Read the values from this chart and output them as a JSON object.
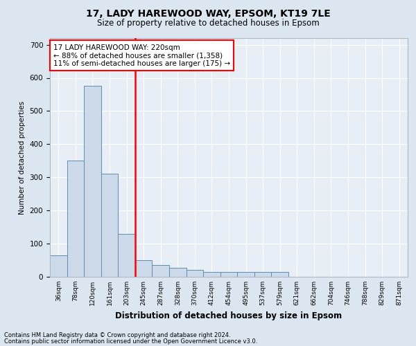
{
  "title1": "17, LADY HAREWOOD WAY, EPSOM, KT19 7LE",
  "title2": "Size of property relative to detached houses in Epsom",
  "xlabel": "Distribution of detached houses by size in Epsom",
  "ylabel": "Number of detached properties",
  "bin_labels": [
    "36sqm",
    "78sqm",
    "120sqm",
    "161sqm",
    "203sqm",
    "245sqm",
    "287sqm",
    "328sqm",
    "370sqm",
    "412sqm",
    "454sqm",
    "495sqm",
    "537sqm",
    "579sqm",
    "621sqm",
    "662sqm",
    "704sqm",
    "746sqm",
    "788sqm",
    "829sqm",
    "871sqm"
  ],
  "bin_values": [
    65,
    350,
    575,
    310,
    130,
    50,
    35,
    28,
    20,
    15,
    15,
    15,
    15,
    15,
    0,
    0,
    0,
    0,
    0,
    0,
    0
  ],
  "bar_color": "#ccd9e8",
  "bar_edge_color": "#5b8db8",
  "red_line_x": 4.5,
  "ylim": [
    0,
    720
  ],
  "yticks": [
    0,
    100,
    200,
    300,
    400,
    500,
    600,
    700
  ],
  "annotation_line1": "17 LADY HAREWOOD WAY: 220sqm",
  "annotation_line2": "← 88% of detached houses are smaller (1,358)",
  "annotation_line3": "11% of semi-detached houses are larger (175) →",
  "footer1": "Contains HM Land Registry data © Crown copyright and database right 2024.",
  "footer2": "Contains public sector information licensed under the Open Government Licence v3.0.",
  "background_color": "#dce6f0",
  "plot_bg_color": "#e8eef5",
  "grid_color": "#ffffff"
}
